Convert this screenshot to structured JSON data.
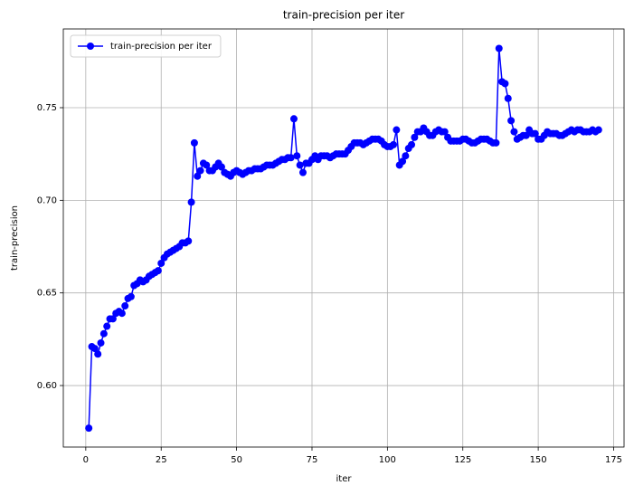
{
  "chart_data": {
    "type": "line",
    "title": "train-precision per iter",
    "xlabel": "iter",
    "ylabel": "train-precision",
    "legend": "upper left",
    "grid": true,
    "xlim": [
      -7.45,
      178.45
    ],
    "ylim": [
      0.5668,
      0.7925
    ],
    "xticks": [
      0,
      25,
      50,
      75,
      100,
      125,
      150,
      175
    ],
    "yticks": [
      {
        "value": 0.6,
        "label": "0.60"
      },
      {
        "value": 0.65,
        "label": "0.65"
      },
      {
        "value": 0.7,
        "label": "0.70"
      },
      {
        "value": 0.75,
        "label": "0.75"
      }
    ],
    "x": [
      1,
      2,
      3,
      4,
      5,
      6,
      7,
      8,
      9,
      10,
      11,
      12,
      13,
      14,
      15,
      16,
      17,
      18,
      19,
      20,
      21,
      22,
      23,
      24,
      25,
      26,
      27,
      28,
      29,
      30,
      31,
      32,
      33,
      34,
      35,
      36,
      37,
      38,
      39,
      40,
      41,
      42,
      43,
      44,
      45,
      46,
      47,
      48,
      49,
      50,
      51,
      52,
      53,
      54,
      55,
      56,
      57,
      58,
      59,
      60,
      61,
      62,
      63,
      64,
      65,
      66,
      67,
      68,
      69,
      70,
      71,
      72,
      73,
      74,
      75,
      76,
      77,
      78,
      79,
      80,
      81,
      82,
      83,
      84,
      85,
      86,
      87,
      88,
      89,
      90,
      91,
      92,
      93,
      94,
      95,
      96,
      97,
      98,
      99,
      100,
      101,
      102,
      103,
      104,
      105,
      106,
      107,
      108,
      109,
      110,
      111,
      112,
      113,
      114,
      115,
      116,
      117,
      118,
      119,
      120,
      121,
      122,
      123,
      124,
      125,
      126,
      127,
      128,
      129,
      130,
      131,
      132,
      133,
      134,
      135,
      136,
      137,
      138,
      139,
      140,
      141,
      142,
      143,
      144,
      145,
      146,
      147,
      148,
      149,
      150,
      151,
      152,
      153,
      154,
      155,
      156,
      157,
      158,
      159,
      160,
      161,
      162,
      163,
      164,
      165,
      166,
      167,
      168,
      169,
      170
    ],
    "series": [
      {
        "name": "train-precision per iter",
        "color": "#0000ff",
        "values": [
          0.577,
          0.621,
          0.62,
          0.617,
          0.623,
          0.628,
          0.632,
          0.636,
          0.636,
          0.639,
          0.64,
          0.639,
          0.643,
          0.647,
          0.648,
          0.654,
          0.655,
          0.657,
          0.656,
          0.657,
          0.659,
          0.66,
          0.661,
          0.662,
          0.666,
          0.669,
          0.671,
          0.672,
          0.673,
          0.674,
          0.675,
          0.677,
          0.677,
          0.678,
          0.699,
          0.731,
          0.713,
          0.716,
          0.72,
          0.719,
          0.716,
          0.716,
          0.718,
          0.72,
          0.718,
          0.715,
          0.714,
          0.713,
          0.715,
          0.716,
          0.715,
          0.714,
          0.715,
          0.716,
          0.716,
          0.717,
          0.717,
          0.717,
          0.718,
          0.719,
          0.719,
          0.719,
          0.72,
          0.721,
          0.722,
          0.722,
          0.723,
          0.723,
          0.744,
          0.724,
          0.719,
          0.715,
          0.72,
          0.72,
          0.722,
          0.724,
          0.722,
          0.724,
          0.724,
          0.724,
          0.723,
          0.724,
          0.725,
          0.725,
          0.725,
          0.725,
          0.727,
          0.729,
          0.731,
          0.731,
          0.731,
          0.73,
          0.731,
          0.732,
          0.733,
          0.733,
          0.733,
          0.732,
          0.73,
          0.729,
          0.729,
          0.73,
          0.738,
          0.719,
          0.721,
          0.724,
          0.728,
          0.73,
          0.734,
          0.737,
          0.737,
          0.739,
          0.737,
          0.735,
          0.735,
          0.737,
          0.738,
          0.737,
          0.737,
          0.734,
          0.732,
          0.732,
          0.732,
          0.732,
          0.733,
          0.733,
          0.732,
          0.731,
          0.731,
          0.732,
          0.733,
          0.733,
          0.733,
          0.732,
          0.731,
          0.731,
          0.782,
          0.764,
          0.763,
          0.755,
          0.743,
          0.737,
          0.733,
          0.734,
          0.735,
          0.735,
          0.738,
          0.736,
          0.736,
          0.733,
          0.733,
          0.735,
          0.737,
          0.736,
          0.736,
          0.736,
          0.735,
          0.735,
          0.736,
          0.737,
          0.738,
          0.737,
          0.738,
          0.738,
          0.737,
          0.737,
          0.737,
          0.738,
          0.737,
          0.738
        ]
      }
    ]
  }
}
